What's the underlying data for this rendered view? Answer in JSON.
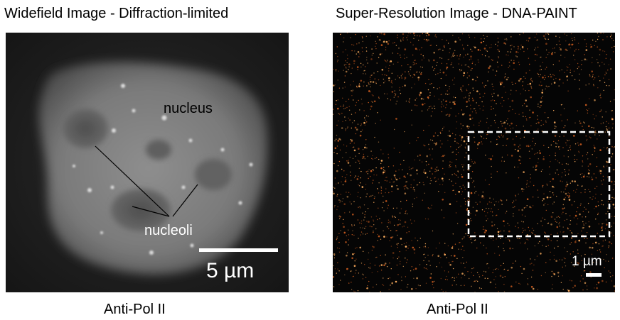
{
  "panels": {
    "left": {
      "title": "Widefield Image - Diffraction-limited",
      "caption": "Anti-Pol II",
      "annotations": {
        "nucleus": "nucleus",
        "nucleoli": "nucleoli"
      },
      "scale_bar_label": "5 µm"
    },
    "right": {
      "title": "Super-Resolution Image - DNA-PAINT",
      "caption": "Anti-Pol II",
      "scale_bar_label": "1 µm"
    }
  },
  "colors": {
    "background": "#ffffff",
    "image_background": "#050505",
    "nucleus_glow": "#9a9a9a",
    "localization_hot": "#ffb060",
    "localization_warm": "#c85a1e",
    "roi_box": "#ffffff"
  }
}
